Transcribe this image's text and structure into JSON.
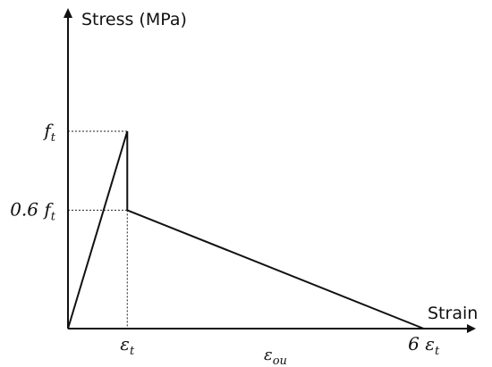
{
  "chart_data": {
    "type": "line",
    "title": "",
    "ylabel": "Stress (MPa)",
    "xlabel": "Strain",
    "x_ticks": [
      {
        "x": 1,
        "base": "ε",
        "sub": "t",
        "prefix": ""
      },
      {
        "x": 6,
        "base": "ε",
        "sub": "t",
        "prefix": "6 "
      }
    ],
    "y_ticks": [
      {
        "y": 1.0,
        "base": "f",
        "sub": "t",
        "prefix": ""
      },
      {
        "y": 0.6,
        "base": "f",
        "sub": "t",
        "prefix": "0.6 "
      }
    ],
    "x_annotation": {
      "base": "ε",
      "sub": "ou"
    },
    "series": [
      {
        "points": [
          [
            0,
            0
          ],
          [
            1,
            1.0
          ],
          [
            1,
            0.6
          ],
          [
            6,
            0
          ]
        ]
      }
    ],
    "guides": [
      {
        "from": [
          0,
          1.0
        ],
        "to": [
          1,
          1.0
        ]
      },
      {
        "from": [
          0,
          0.6
        ],
        "to": [
          1,
          0.6
        ]
      },
      {
        "from": [
          1,
          0.6
        ],
        "to": [
          1,
          0
        ]
      }
    ],
    "xlim": [
      0,
      6.85
    ],
    "ylim": [
      0,
      1.62
    ],
    "grid": false,
    "colors": {
      "line": "#111111",
      "guide": "#222222"
    }
  }
}
